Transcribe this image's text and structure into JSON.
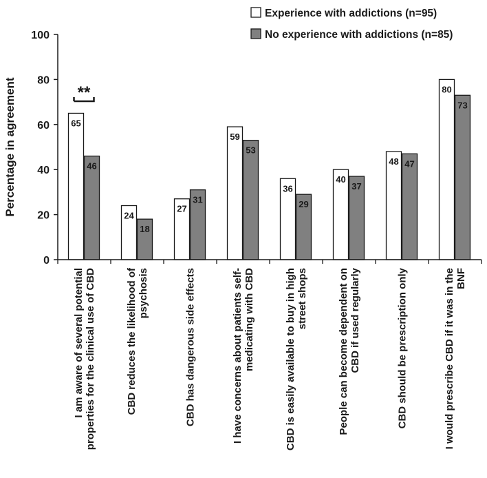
{
  "chart_data": {
    "type": "bar",
    "title": "",
    "xlabel": "",
    "ylabel": "Percentage in agreement",
    "ylim": [
      0,
      100
    ],
    "yticks": [
      0,
      20,
      40,
      60,
      80,
      100
    ],
    "legend_position": "top-right",
    "categories": [
      [
        "I am aware of several potential",
        "properties for the clinical use of CBD"
      ],
      [
        "CBD reduces the likelihood of",
        "psychosis"
      ],
      [
        "CBD has dangerous side effects"
      ],
      [
        "I have concerns about patients self-",
        "medicating with CBD"
      ],
      [
        "CBD is easily available to buy in high",
        "street shops"
      ],
      [
        "People can become dependent on",
        "CBD if used regularly"
      ],
      [
        "CBD should be prescription only"
      ],
      [
        "I would prescribe CBD if it was in the",
        "BNF"
      ]
    ],
    "series": [
      {
        "name": "Experience with addictions (n=95)",
        "color": "#ffffff",
        "values": [
          65,
          24,
          27,
          59,
          36,
          40,
          48,
          80
        ]
      },
      {
        "name": "No experience with addictions (n=85)",
        "color": "#808080",
        "values": [
          46,
          18,
          31,
          53,
          29,
          37,
          47,
          73
        ]
      }
    ],
    "annotations": [
      {
        "text": "**",
        "category_index": 0,
        "type": "significance-bracket"
      }
    ]
  }
}
